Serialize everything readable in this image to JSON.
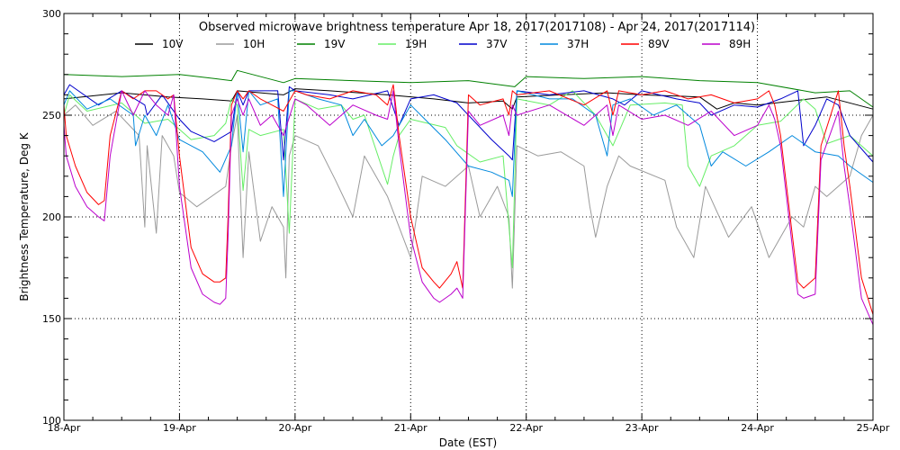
{
  "chart_data": {
    "type": "line",
    "title": "Observed microwave brightness temperature Apr 18, 2017(2017108) - Apr 24, 2017(2017114)",
    "xlabel": "Date (EST)",
    "ylabel": "Brightness Temperature, Deg K",
    "xlim": [
      0,
      7
    ],
    "ylim": [
      100,
      300
    ],
    "x_tick_values": [
      0,
      1,
      2,
      3,
      4,
      5,
      6,
      7
    ],
    "x_tick_labels": [
      "18-Apr",
      "19-Apr",
      "20-Apr",
      "21-Apr",
      "22-Apr",
      "23-Apr",
      "24-Apr",
      "25-Apr"
    ],
    "y_tick_values": [
      100,
      150,
      200,
      250,
      300
    ],
    "y_tick_labels": [
      "100",
      "150",
      "200",
      "250",
      "300"
    ],
    "grid": true,
    "legend_position": "top",
    "x_units": "days since 18-Apr 00:00 EST",
    "series": [
      {
        "name": "10V",
        "color": "#000000",
        "x": [
          0,
          0.5,
          0.9,
          1.2,
          1.45,
          1.5,
          1.9,
          2.0,
          2.3,
          2.8,
          3.2,
          3.5,
          3.8,
          3.88,
          3.92,
          4.3,
          4.7,
          5.0,
          5.5,
          5.65,
          5.8,
          6.0,
          6.3,
          6.6,
          7.0
        ],
        "values": [
          258,
          261,
          259,
          258,
          257,
          262,
          260,
          263,
          262,
          260,
          258,
          256,
          257,
          253,
          259,
          260,
          261,
          260,
          259,
          253,
          256,
          255,
          257,
          259,
          253
        ]
      },
      {
        "name": "10H",
        "color": "#9a9a9a",
        "x": [
          0,
          0.1,
          0.25,
          0.45,
          0.65,
          0.7,
          0.72,
          0.8,
          0.85,
          0.95,
          1.0,
          1.15,
          1.4,
          1.45,
          1.5,
          1.55,
          1.6,
          1.7,
          1.8,
          1.9,
          1.92,
          1.95,
          2.0,
          2.2,
          2.35,
          2.5,
          2.6,
          2.8,
          3.0,
          3.1,
          3.3,
          3.5,
          3.6,
          3.75,
          3.85,
          3.88,
          3.92,
          4.1,
          4.3,
          4.5,
          4.55,
          4.6,
          4.7,
          4.8,
          4.9,
          5.2,
          5.3,
          5.45,
          5.55,
          5.75,
          5.95,
          6.1,
          6.3,
          6.4,
          6.5,
          6.6,
          6.8,
          6.9,
          7.0
        ],
        "values": [
          250,
          255,
          245,
          252,
          240,
          195,
          235,
          192,
          240,
          230,
          212,
          205,
          215,
          235,
          250,
          180,
          232,
          188,
          205,
          195,
          170,
          230,
          240,
          235,
          218,
          200,
          230,
          210,
          180,
          220,
          215,
          225,
          200,
          215,
          200,
          165,
          235,
          230,
          232,
          225,
          205,
          190,
          215,
          230,
          225,
          218,
          195,
          180,
          215,
          190,
          205,
          180,
          200,
          195,
          215,
          210,
          220,
          240,
          250
        ]
      },
      {
        "name": "19V",
        "color": "#008000",
        "x": [
          0,
          0.5,
          1.0,
          1.3,
          1.45,
          1.5,
          1.9,
          2.0,
          2.5,
          3.0,
          3.5,
          3.9,
          4.0,
          4.5,
          5.0,
          5.5,
          6.0,
          6.5,
          6.8,
          7.0
        ],
        "values": [
          270,
          269,
          270,
          268,
          267,
          272,
          266,
          268,
          267,
          266,
          267,
          264,
          269,
          268,
          269,
          267,
          266,
          261,
          262,
          254
        ]
      },
      {
        "name": "19H",
        "color": "#66ee66",
        "x": [
          0,
          0.05,
          0.2,
          0.5,
          0.7,
          0.9,
          1.1,
          1.3,
          1.4,
          1.45,
          1.5,
          1.55,
          1.6,
          1.7,
          1.9,
          1.95,
          2.0,
          2.2,
          2.4,
          2.5,
          2.6,
          2.8,
          2.85,
          2.9,
          3.0,
          3.3,
          3.4,
          3.6,
          3.8,
          3.88,
          3.92,
          4.2,
          4.4,
          4.6,
          4.75,
          4.9,
          5.2,
          5.35,
          5.4,
          5.5,
          5.6,
          5.8,
          6.0,
          6.2,
          6.4,
          6.5,
          6.6,
          6.8,
          7.0
        ],
        "values": [
          250,
          260,
          252,
          256,
          246,
          248,
          238,
          240,
          246,
          258,
          255,
          213,
          243,
          240,
          243,
          192,
          258,
          253,
          255,
          248,
          250,
          216,
          230,
          240,
          248,
          244,
          235,
          227,
          230,
          175,
          258,
          255,
          262,
          250,
          235,
          255,
          256,
          255,
          225,
          215,
          230,
          235,
          245,
          247,
          258,
          253,
          236,
          240,
          230
        ]
      },
      {
        "name": "37V",
        "color": "#0000cc",
        "x": [
          0,
          0.05,
          0.3,
          0.5,
          0.7,
          0.72,
          0.85,
          1.0,
          1.1,
          1.3,
          1.45,
          1.5,
          1.55,
          1.6,
          1.85,
          1.9,
          1.95,
          2.0,
          2.3,
          2.5,
          2.8,
          2.9,
          3.0,
          3.2,
          3.4,
          3.7,
          3.85,
          3.88,
          3.92,
          4.2,
          4.5,
          4.75,
          4.85,
          5.0,
          5.3,
          5.5,
          5.6,
          5.8,
          6.0,
          6.2,
          6.35,
          6.4,
          6.5,
          6.6,
          6.7,
          6.8,
          7.0
        ],
        "values": [
          260,
          265,
          255,
          262,
          255,
          250,
          260,
          248,
          242,
          237,
          242,
          262,
          255,
          262,
          262,
          228,
          264,
          262,
          260,
          258,
          262,
          245,
          258,
          260,
          256,
          238,
          230,
          228,
          262,
          260,
          262,
          258,
          255,
          262,
          258,
          256,
          250,
          255,
          254,
          258,
          262,
          235,
          245,
          258,
          255,
          240,
          227
        ]
      },
      {
        "name": "37H",
        "color": "#0088dd",
        "x": [
          0,
          0.05,
          0.2,
          0.4,
          0.6,
          0.62,
          0.7,
          0.8,
          0.9,
          1.0,
          1.2,
          1.35,
          1.45,
          1.5,
          1.55,
          1.6,
          1.7,
          1.85,
          1.9,
          1.95,
          2.0,
          2.2,
          2.4,
          2.5,
          2.6,
          2.75,
          2.85,
          3.0,
          3.3,
          3.5,
          3.7,
          3.85,
          3.88,
          3.92,
          4.2,
          4.4,
          4.6,
          4.7,
          4.75,
          4.9,
          5.1,
          5.3,
          5.5,
          5.6,
          5.7,
          5.9,
          6.1,
          6.3,
          6.5,
          6.7,
          6.8,
          7.0
        ],
        "values": [
          255,
          262,
          253,
          258,
          250,
          235,
          250,
          240,
          255,
          238,
          232,
          222,
          235,
          262,
          232,
          262,
          255,
          258,
          210,
          262,
          262,
          258,
          255,
          240,
          248,
          235,
          240,
          255,
          238,
          225,
          222,
          218,
          210,
          262,
          258,
          258,
          250,
          230,
          255,
          258,
          250,
          255,
          245,
          225,
          232,
          225,
          232,
          240,
          232,
          230,
          225,
          217
        ]
      },
      {
        "name": "89V",
        "color": "#ff0000",
        "x": [
          0,
          0.02,
          0.1,
          0.2,
          0.3,
          0.35,
          0.4,
          0.5,
          0.6,
          0.7,
          0.8,
          0.9,
          0.95,
          1.0,
          1.1,
          1.2,
          1.3,
          1.35,
          1.4,
          1.42,
          1.45,
          1.5,
          1.55,
          1.6,
          1.7,
          1.8,
          1.9,
          2.0,
          2.1,
          2.3,
          2.5,
          2.7,
          2.8,
          2.85,
          2.9,
          3.0,
          3.1,
          3.2,
          3.25,
          3.35,
          3.4,
          3.45,
          3.5,
          3.6,
          3.8,
          3.85,
          3.88,
          3.92,
          4.2,
          4.5,
          4.7,
          4.75,
          4.8,
          5.0,
          5.2,
          5.4,
          5.6,
          5.8,
          6.0,
          6.1,
          6.15,
          6.2,
          6.35,
          6.4,
          6.5,
          6.55,
          6.7,
          6.75,
          6.8,
          6.9,
          7.0
        ],
        "values": [
          255,
          240,
          225,
          212,
          206,
          208,
          240,
          262,
          258,
          262,
          262,
          258,
          260,
          230,
          185,
          172,
          168,
          168,
          170,
          200,
          255,
          262,
          258,
          262,
          258,
          255,
          252,
          262,
          260,
          258,
          262,
          260,
          255,
          265,
          240,
          200,
          175,
          168,
          165,
          172,
          178,
          165,
          260,
          255,
          258,
          250,
          262,
          260,
          262,
          255,
          262,
          250,
          262,
          260,
          262,
          258,
          260,
          256,
          258,
          262,
          255,
          240,
          168,
          165,
          170,
          235,
          262,
          235,
          215,
          170,
          152
        ]
      },
      {
        "name": "89H",
        "color": "#bb00cc",
        "x": [
          0,
          0.02,
          0.1,
          0.2,
          0.3,
          0.35,
          0.4,
          0.5,
          0.6,
          0.7,
          0.8,
          0.9,
          0.95,
          1.0,
          1.1,
          1.2,
          1.3,
          1.35,
          1.4,
          1.42,
          1.45,
          1.5,
          1.55,
          1.6,
          1.7,
          1.8,
          1.9,
          2.0,
          2.1,
          2.3,
          2.5,
          2.7,
          2.8,
          2.85,
          2.9,
          3.0,
          3.1,
          3.2,
          3.25,
          3.35,
          3.4,
          3.45,
          3.5,
          3.6,
          3.8,
          3.85,
          3.88,
          3.92,
          4.2,
          4.5,
          4.7,
          4.75,
          4.8,
          5.0,
          5.2,
          5.4,
          5.6,
          5.8,
          6.0,
          6.1,
          6.15,
          6.2,
          6.35,
          6.4,
          6.5,
          6.55,
          6.7,
          6.75,
          6.8,
          6.9,
          7.0
        ],
        "values": [
          245,
          230,
          215,
          205,
          200,
          198,
          230,
          262,
          250,
          262,
          255,
          250,
          260,
          215,
          175,
          162,
          158,
          157,
          160,
          190,
          250,
          258,
          250,
          258,
          245,
          250,
          240,
          258,
          255,
          245,
          255,
          250,
          248,
          262,
          235,
          190,
          168,
          160,
          158,
          162,
          165,
          160,
          252,
          245,
          250,
          240,
          255,
          250,
          255,
          245,
          255,
          240,
          255,
          248,
          250,
          245,
          252,
          240,
          245,
          255,
          248,
          235,
          162,
          160,
          162,
          228,
          252,
          225,
          205,
          160,
          147
        ]
      }
    ]
  }
}
